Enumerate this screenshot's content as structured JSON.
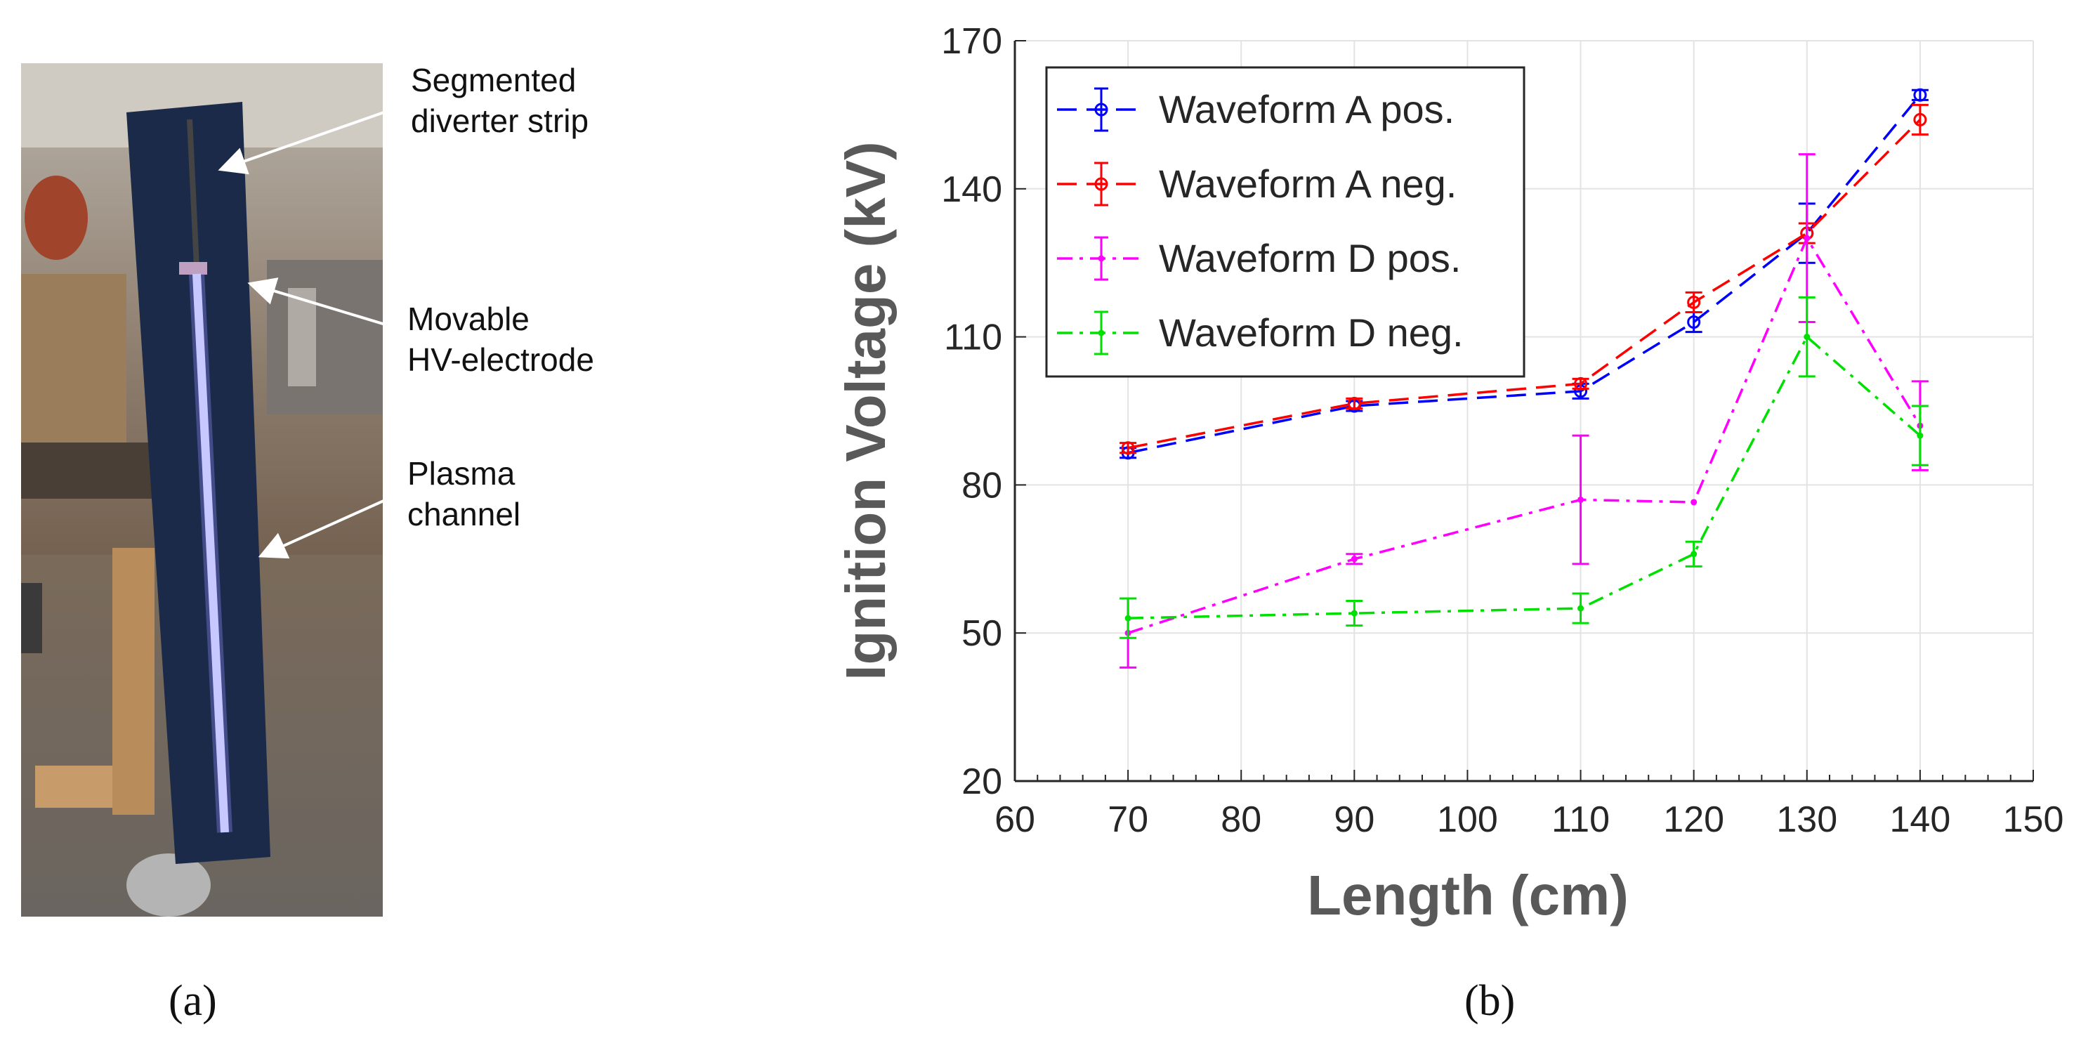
{
  "figure": {
    "panel_a_label": "(a)",
    "panel_b_label": "(b)",
    "annotations": [
      {
        "label": "Segmented\ndiverter strip"
      },
      {
        "label": "Movable\nHV-electrode"
      },
      {
        "label": "Plasma\nchannel"
      }
    ],
    "photo_description_icons": [
      "diverter-strip-photo"
    ]
  },
  "chart_data": {
    "type": "line",
    "title": "",
    "xlabel": "Length (cm)",
    "ylabel": "Ignition Voltage (kV)",
    "xlim": [
      60,
      150
    ],
    "ylim": [
      20,
      170
    ],
    "xticks": [
      60,
      70,
      80,
      90,
      100,
      110,
      120,
      130,
      140,
      150
    ],
    "yticks": [
      20,
      50,
      80,
      110,
      140,
      170
    ],
    "grid": true,
    "legend_position": "top-left",
    "x": [
      70,
      90,
      110,
      120,
      130,
      140
    ],
    "series": [
      {
        "name": "Waveform A pos.",
        "color": "#0000ff",
        "style": "dashed",
        "marker": "circle",
        "values": [
          86.5,
          96,
          99,
          113,
          131,
          159
        ],
        "errors": [
          1,
          1,
          1.5,
          2,
          6,
          1
        ]
      },
      {
        "name": "Waveform A neg.",
        "color": "#ff0000",
        "style": "dashed",
        "marker": "circle",
        "values": [
          87.5,
          96.5,
          100.5,
          117,
          131,
          154
        ],
        "errors": [
          1,
          1,
          1,
          2,
          2,
          3
        ]
      },
      {
        "name": "Waveform D pos.",
        "color": "#ff00ff",
        "style": "dashdot",
        "marker": "dot",
        "values": [
          50,
          65,
          77,
          76.5,
          130,
          92
        ],
        "errors": [
          7,
          1,
          13,
          0,
          17,
          9
        ]
      },
      {
        "name": "Waveform D neg.",
        "color": "#00e000",
        "style": "dashdot",
        "marker": "dot",
        "values": [
          53,
          54,
          55,
          66,
          110,
          90
        ],
        "errors": [
          4,
          2.5,
          3,
          2.5,
          8,
          6
        ]
      }
    ]
  }
}
